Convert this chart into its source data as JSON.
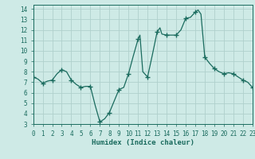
{
  "x": [
    0,
    0.5,
    1,
    1.5,
    2,
    2.5,
    3,
    3.5,
    4,
    4.5,
    5,
    5.5,
    6,
    6.5,
    7,
    7.5,
    8,
    8.5,
    9,
    9.5,
    10,
    10.5,
    11,
    11.2,
    11.5,
    12,
    12.5,
    13,
    13.3,
    13.5,
    14,
    14.5,
    15,
    15.5,
    16,
    16.5,
    17,
    17.3,
    17.6,
    18,
    18.5,
    19,
    19.5,
    20,
    20.5,
    21,
    21.5,
    22,
    22.5,
    23
  ],
  "y": [
    7.5,
    7.3,
    6.9,
    7.1,
    7.2,
    7.8,
    8.2,
    8.0,
    7.2,
    6.8,
    6.5,
    6.6,
    6.6,
    4.8,
    3.2,
    3.5,
    4.1,
    5.2,
    6.3,
    6.5,
    7.8,
    9.5,
    11.1,
    11.5,
    8.0,
    7.5,
    9.6,
    11.8,
    12.2,
    11.6,
    11.5,
    11.5,
    11.5,
    12.0,
    13.1,
    13.2,
    13.7,
    13.9,
    13.5,
    9.4,
    8.8,
    8.3,
    8.0,
    7.8,
    7.9,
    7.8,
    7.5,
    7.2,
    7.0,
    6.5
  ],
  "marker_x": [
    0,
    1,
    2,
    3,
    4,
    5,
    6,
    7,
    8,
    9,
    10,
    11,
    12,
    13,
    14,
    15,
    16,
    17,
    18,
    19,
    20,
    21,
    22,
    23
  ],
  "marker_y": [
    7.5,
    6.9,
    7.2,
    8.2,
    7.2,
    6.5,
    6.6,
    3.2,
    4.1,
    6.3,
    7.8,
    11.1,
    7.5,
    11.8,
    11.5,
    11.5,
    13.1,
    13.7,
    9.4,
    8.3,
    7.8,
    7.8,
    7.2,
    6.5
  ],
  "line_color": "#1a6b5e",
  "marker_color": "#1a6b5e",
  "bg_color": "#ceeae6",
  "grid_color": "#b0d0cc",
  "axis_color": "#1a6b5e",
  "xlabel": "Humidex (Indice chaleur)",
  "ylim": [
    3,
    14.4
  ],
  "xlim": [
    0,
    23
  ],
  "yticks": [
    3,
    4,
    5,
    6,
    7,
    8,
    9,
    10,
    11,
    12,
    13,
    14
  ],
  "xticks": [
    0,
    1,
    2,
    3,
    4,
    5,
    6,
    7,
    8,
    9,
    10,
    11,
    12,
    13,
    14,
    15,
    16,
    17,
    18,
    19,
    20,
    21,
    22,
    23
  ]
}
